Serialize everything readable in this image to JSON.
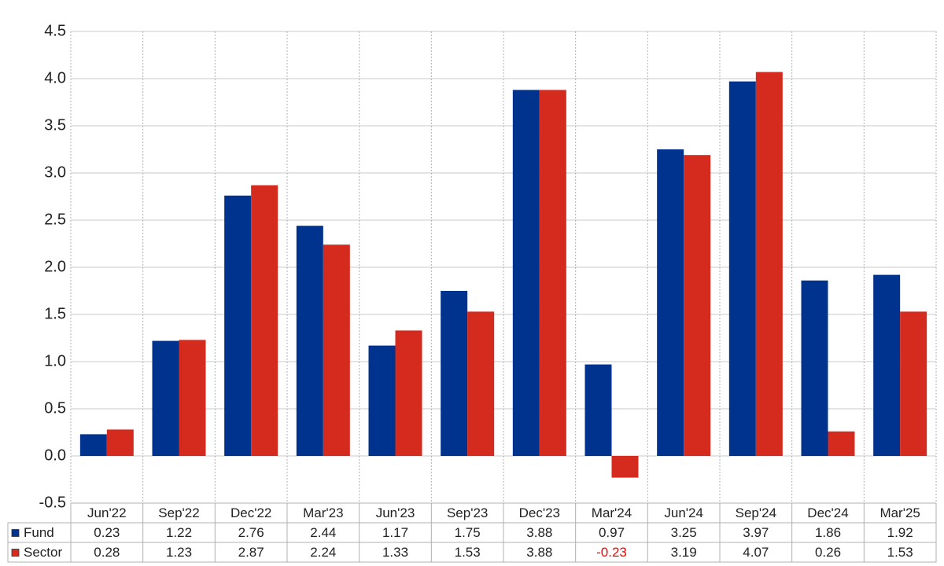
{
  "chart_data": {
    "type": "bar",
    "categories": [
      "Jun'22",
      "Sep'22",
      "Dec'22",
      "Mar'23",
      "Jun'23",
      "Sep'23",
      "Dec'23",
      "Mar'24",
      "Jun'24",
      "Sep'24",
      "Dec'24",
      "Mar'25"
    ],
    "series": [
      {
        "name": "Fund",
        "color": "#00338d",
        "values": [
          0.23,
          1.22,
          2.76,
          2.44,
          1.17,
          1.75,
          3.88,
          0.97,
          3.25,
          3.97,
          1.86,
          1.92
        ]
      },
      {
        "name": "Sector",
        "color": "#d52b1e",
        "values": [
          0.28,
          1.23,
          2.87,
          2.24,
          1.33,
          1.53,
          3.88,
          -0.23,
          3.19,
          4.07,
          0.26,
          1.53
        ]
      }
    ],
    "ylim": [
      -0.5,
      4.5
    ],
    "yticks": [
      -0.5,
      {
        "value": 0,
        "label": "0.0"
      },
      0.5,
      {
        "value": 1,
        "label": "1.0"
      },
      1.5,
      {
        "value": 2,
        "label": "2.0"
      },
      2.5,
      {
        "value": 3,
        "label": "3.0"
      },
      3.5,
      {
        "value": 4,
        "label": "4.0"
      },
      4.5
    ],
    "grid": true,
    "negative_label_color": "#ff0000"
  }
}
